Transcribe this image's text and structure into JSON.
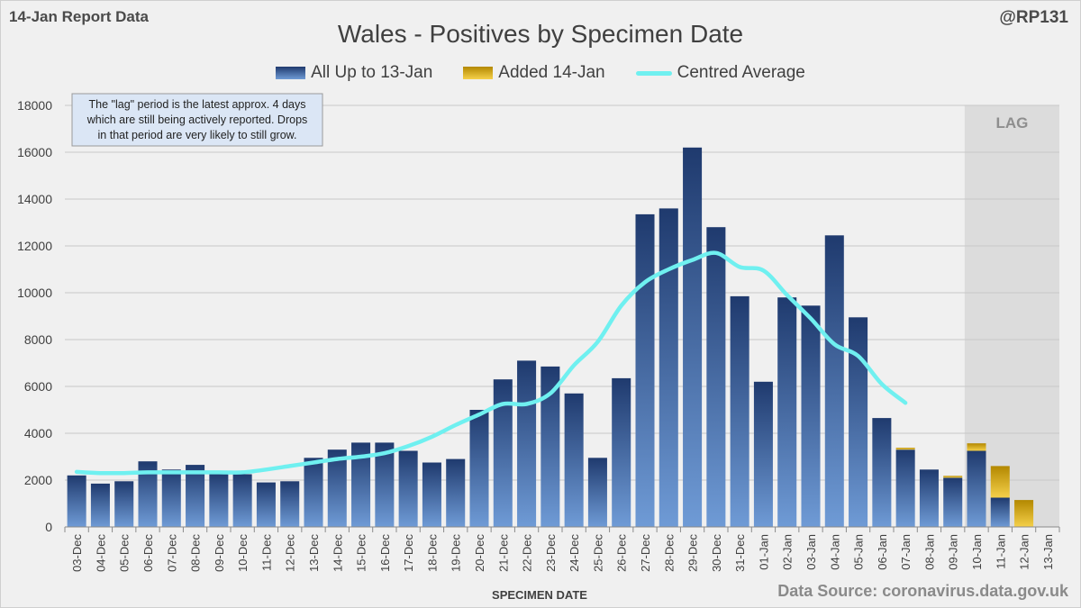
{
  "header": {
    "report_label": "14-Jan Report Data",
    "handle": "@RP131",
    "source": "Data Source: coronavirus.data.gov.uk"
  },
  "annotation": {
    "lines": [
      "The \"lag\" period is the latest approx. 4 days",
      "which are still being actively reported. Drops",
      "in that period are very likely to still grow."
    ]
  },
  "colors": {
    "bar_dark": "#1f3a6e",
    "bar_light": "#6f9bd6",
    "added_dark": "#b38800",
    "added_light": "#f5d04a",
    "average": "#6ff0f0",
    "lag_shade": "#dcdcdc",
    "grid": "#c8c8c8"
  },
  "chart_data": {
    "type": "bar",
    "title": "Wales - Positives by Specimen Date",
    "xlabel": "SPECIMEN DATE",
    "ylabel": "",
    "ylim": [
      0,
      18000
    ],
    "yticks": [
      0,
      2000,
      4000,
      6000,
      8000,
      10000,
      12000,
      14000,
      16000,
      18000
    ],
    "stacked": true,
    "categories": [
      "03-Dec",
      "04-Dec",
      "05-Dec",
      "06-Dec",
      "07-Dec",
      "08-Dec",
      "09-Dec",
      "10-Dec",
      "11-Dec",
      "12-Dec",
      "13-Dec",
      "14-Dec",
      "15-Dec",
      "16-Dec",
      "17-Dec",
      "18-Dec",
      "19-Dec",
      "20-Dec",
      "21-Dec",
      "22-Dec",
      "23-Dec",
      "24-Dec",
      "25-Dec",
      "26-Dec",
      "27-Dec",
      "28-Dec",
      "29-Dec",
      "30-Dec",
      "31-Dec",
      "01-Jan",
      "02-Jan",
      "03-Jan",
      "04-Jan",
      "05-Jan",
      "06-Jan",
      "07-Jan",
      "08-Jan",
      "09-Jan",
      "10-Jan",
      "11-Jan",
      "12-Jan",
      "13-Jan"
    ],
    "series": [
      {
        "name": "All Up to 13-Jan",
        "kind": "bar",
        "values": [
          2200,
          1850,
          1950,
          2800,
          2450,
          2650,
          2300,
          2250,
          1900,
          1950,
          2950,
          3300,
          3600,
          3600,
          3250,
          2750,
          2900,
          5000,
          6300,
          7100,
          6850,
          5700,
          2950,
          6350,
          13350,
          13600,
          16200,
          12800,
          9850,
          6200,
          9800,
          9450,
          12450,
          8950,
          4650,
          3300,
          2450,
          2100,
          3250,
          1250,
          0,
          0
        ]
      },
      {
        "name": "Added 14-Jan",
        "kind": "bar",
        "values": [
          0,
          0,
          0,
          0,
          0,
          0,
          0,
          0,
          0,
          0,
          0,
          0,
          0,
          0,
          0,
          0,
          0,
          0,
          0,
          0,
          0,
          0,
          0,
          0,
          0,
          0,
          0,
          0,
          0,
          0,
          0,
          0,
          0,
          0,
          0,
          80,
          0,
          80,
          320,
          1350,
          1150,
          0
        ]
      },
      {
        "name": "Centred Average",
        "kind": "line",
        "values": [
          2350,
          2300,
          2300,
          2330,
          2330,
          2330,
          2330,
          2330,
          2450,
          2600,
          2750,
          2900,
          3000,
          3150,
          3450,
          3850,
          4350,
          4800,
          5250,
          5250,
          5700,
          6900,
          7900,
          9450,
          10450,
          11000,
          11400,
          11700,
          11100,
          10950,
          9900,
          8900,
          7800,
          7300,
          6100,
          5300,
          null,
          null,
          null,
          null,
          null,
          null
        ]
      }
    ],
    "lag": {
      "label": "LAG",
      "start": "10-Jan",
      "end": "13-Jan"
    }
  }
}
